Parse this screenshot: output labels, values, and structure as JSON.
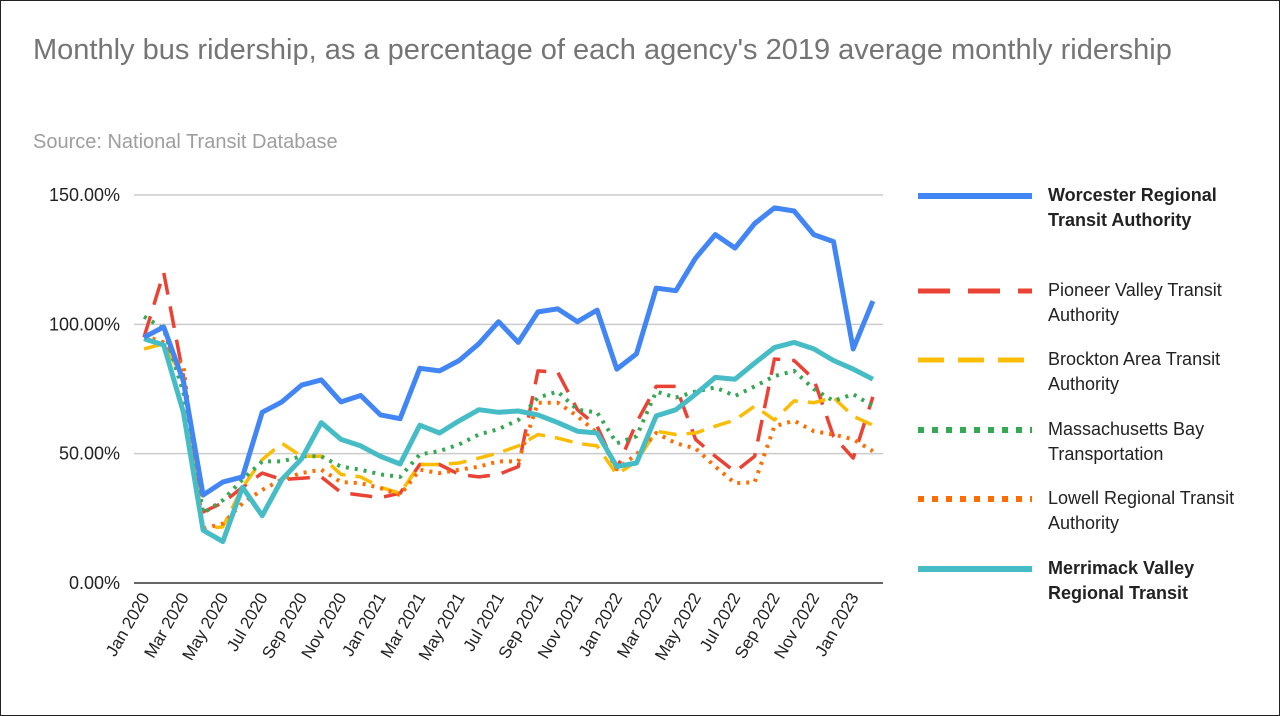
{
  "title": "Monthly bus ridership, as a percentage of each agency's 2019 average monthly ridership",
  "subtitle": "Source: National Transit Database",
  "chart_data": {
    "type": "line",
    "title": "Monthly bus ridership, as a percentage of each agency's 2019 average monthly ridership",
    "subtitle": "Source: National Transit Database",
    "xlabel": "",
    "ylabel": "",
    "ylim": [
      0,
      150
    ],
    "yticks": [
      "0.00%",
      "50.00%",
      "100.00%",
      "150.00%"
    ],
    "ytick_values": [
      0,
      50,
      100,
      150
    ],
    "grid": true,
    "legend_position": "right",
    "x": [
      "Jan 2020",
      "Feb 2020",
      "Mar 2020",
      "Apr 2020",
      "May 2020",
      "Jun 2020",
      "Jul 2020",
      "Aug 2020",
      "Sep 2020",
      "Oct 2020",
      "Nov 2020",
      "Dec 2020",
      "Jan 2021",
      "Feb 2021",
      "Mar 2021",
      "Apr 2021",
      "May 2021",
      "Jun 2021",
      "Jul 2021",
      "Aug 2021",
      "Sep 2021",
      "Oct 2021",
      "Nov 2021",
      "Dec 2021",
      "Jan 2022",
      "Feb 2022",
      "Mar 2022",
      "Apr 2022",
      "May 2022",
      "Jun 2022",
      "Jul 2022",
      "Aug 2022",
      "Sep 2022",
      "Oct 2022",
      "Nov 2022",
      "Dec 2022",
      "Jan 2023",
      "Feb 2023"
    ],
    "xtick_labels": [
      "Jan 2020",
      "Mar 2020",
      "May 2020",
      "Jul 2020",
      "Sep 2020",
      "Nov 2020",
      "Jan 2021",
      "Mar 2021",
      "May 2021",
      "Jul 2021",
      "Sep 2021",
      "Nov 2021",
      "Jan 2022",
      "Mar 2022",
      "May 2022",
      "Jul 2022",
      "Sep 2022",
      "Nov 2022",
      "Jan 2023"
    ],
    "series": [
      {
        "name": "Worcester Regional Transit Authority",
        "color": "#4285F4",
        "style": "solid",
        "bold_legend": true,
        "values": [
          95,
          99,
          78,
          34,
          39,
          41,
          66,
          70,
          76.5,
          78.5,
          70,
          72.5,
          65,
          63.5,
          83,
          82,
          86,
          92.5,
          101,
          93,
          104.8,
          106,
          101,
          105.5,
          82.7,
          88.6,
          114,
          113,
          125.6,
          134.7,
          129.5,
          139,
          145,
          143.8,
          134.7,
          132,
          90.5,
          109
        ]
      },
      {
        "name": "Pioneer Valley Transit Authority",
        "color": "#EA4335",
        "style": "long-dash",
        "bold_legend": false,
        "values": [
          95,
          120,
          80,
          27.5,
          31,
          37,
          42.5,
          40,
          40.5,
          41,
          35,
          34,
          33,
          34.7,
          45.8,
          45.8,
          42,
          41,
          42,
          45,
          82,
          81.5,
          67,
          60.6,
          44,
          62,
          76,
          76,
          55.5,
          49,
          43,
          49,
          86.6,
          86,
          78.8,
          56.7,
          48.3,
          72
        ]
      },
      {
        "name": "Brockton Area Transit Authority",
        "color": "#FBBC04",
        "style": "dash",
        "bold_legend": false,
        "values": [
          90.5,
          92.5,
          79,
          21,
          21.7,
          37,
          47.7,
          54,
          49,
          49,
          42,
          41,
          37,
          34.7,
          45.8,
          45.8,
          46.4,
          48.3,
          50.3,
          53,
          57.4,
          56,
          54,
          53,
          42,
          47,
          58.7,
          57.4,
          58,
          60.6,
          63,
          68.4,
          63,
          70.4,
          69.7,
          71.7,
          64.5,
          61
        ]
      },
      {
        "name": "Massachusetts Bay Transportation",
        "color": "#34A853",
        "style": "dot",
        "bold_legend": false,
        "values": [
          103,
          98.3,
          73.6,
          27,
          32,
          40,
          47,
          47,
          49,
          49,
          45,
          43.8,
          42,
          41,
          49.7,
          51,
          53.6,
          57.4,
          59.5,
          63,
          71.7,
          74,
          67,
          65.9,
          54,
          56.7,
          74,
          71.7,
          74,
          75.6,
          72.3,
          76,
          80,
          82,
          75,
          70.4,
          73,
          68.4
        ]
      },
      {
        "name": "Lowell Regional Transit Authority",
        "color": "#FF6D01",
        "style": "dot",
        "bold_legend": false,
        "values": [
          95.7,
          93,
          84,
          21,
          23,
          30.8,
          36,
          40,
          42.5,
          43.8,
          39,
          38.6,
          36.7,
          34,
          43.8,
          42.5,
          43.8,
          45,
          47,
          47,
          69.7,
          69.7,
          64.5,
          58,
          44,
          49.7,
          58,
          54,
          52,
          45,
          38.6,
          39,
          60.6,
          62.7,
          58.7,
          57.4,
          55.5,
          51
        ]
      },
      {
        "name": "Merrimack Valley Regional Transit",
        "color": "#46BDC6",
        "style": "solid",
        "bold_legend": true,
        "values": [
          94.4,
          92,
          66,
          20.4,
          16,
          37,
          26,
          40,
          48,
          62,
          55.5,
          53,
          49,
          46,
          61,
          58,
          62.7,
          67,
          66,
          66.5,
          65,
          62,
          58.7,
          58,
          45,
          46.4,
          64.6,
          67,
          73,
          79.5,
          78.8,
          85,
          91,
          93,
          90.5,
          86,
          82.7,
          78.8
        ]
      }
    ]
  }
}
